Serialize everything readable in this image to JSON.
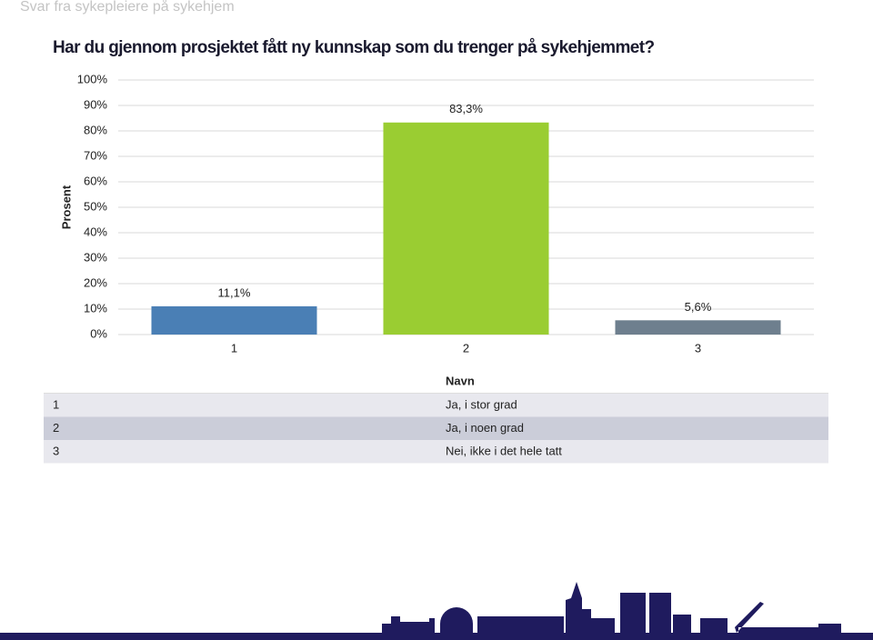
{
  "header": "Svar fra sykepleiere på sykehjem",
  "chart_data": {
    "type": "bar",
    "title": "Har du gjennom prosjektet fått ny kunnskap som du trenger på sykehjemmet?",
    "y_label": "Prosent",
    "categories": [
      "1",
      "2",
      "3"
    ],
    "values": [
      11.1,
      83.3,
      5.6
    ],
    "value_labels": [
      "11,1%",
      "83,3%",
      "5,6%"
    ],
    "colors": [
      "#4a7fb5",
      "#9acd32",
      "#6e7f8e"
    ],
    "ylim": [
      0,
      100
    ],
    "yticks": [
      {
        "value": 0,
        "label": "0%"
      },
      {
        "value": 10,
        "label": "10%"
      },
      {
        "value": 20,
        "label": "20%"
      },
      {
        "value": 30,
        "label": "30%"
      },
      {
        "value": 40,
        "label": "40%"
      },
      {
        "value": 50,
        "label": "50%"
      },
      {
        "value": 60,
        "label": "60%"
      },
      {
        "value": 70,
        "label": "70%"
      },
      {
        "value": 80,
        "label": "80%"
      },
      {
        "value": 90,
        "label": "90%"
      },
      {
        "value": 100,
        "label": "100%"
      }
    ],
    "grid": true
  },
  "table": {
    "header": "Navn",
    "rows": [
      [
        "1",
        "Ja, i stor grad"
      ],
      [
        "2",
        "Ja, i noen grad"
      ],
      [
        "3",
        "Nei, ikke i det hele tatt"
      ]
    ]
  }
}
